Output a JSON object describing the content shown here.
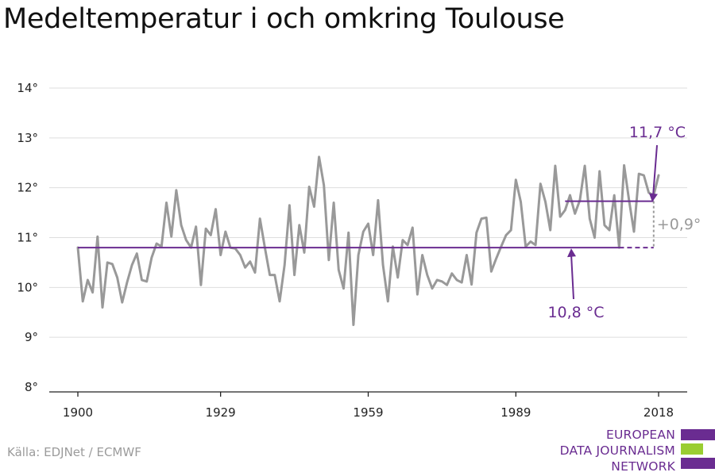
{
  "title": "Medeltemperatur i och omkring Toulouse",
  "source": "Källa: EDJNet / ECMWF",
  "logo": {
    "lines": [
      "EUROPEAN",
      "DATA JOURNALISM",
      "NETWORK"
    ],
    "colors": {
      "purple": "#6a2c91",
      "green": "#9acd32"
    }
  },
  "colors": {
    "series": "#999999",
    "accent": "#6a2c91",
    "diff": "#9a9a9a",
    "grid": "#dddddd"
  },
  "chart_data": {
    "type": "line",
    "title": "Medeltemperatur i och omkring Toulouse",
    "xlabel": "",
    "ylabel": "",
    "xlim": [
      1900,
      2018
    ],
    "ylim": [
      8,
      14
    ],
    "grid": true,
    "legend": "none",
    "x_ticks": [
      1900,
      1929,
      1959,
      1989,
      2018
    ],
    "y_ticks": [
      {
        "value": 8,
        "label": "8°"
      },
      {
        "value": 9,
        "label": "9°"
      },
      {
        "value": 10,
        "label": "10°"
      },
      {
        "value": 11,
        "label": "11°"
      },
      {
        "value": 12,
        "label": "12°"
      },
      {
        "value": 13,
        "label": "13°"
      },
      {
        "value": 14,
        "label": "14°"
      }
    ],
    "series": [
      {
        "x": [
          1900,
          1901,
          1902,
          1903,
          1904,
          1905,
          1906,
          1907,
          1908,
          1909,
          1910,
          1911,
          1912,
          1913,
          1914,
          1915,
          1916,
          1917,
          1918,
          1919,
          1920,
          1921,
          1922,
          1923,
          1924,
          1925,
          1926,
          1927,
          1928,
          1929,
          1930,
          1931,
          1932,
          1933,
          1934,
          1935,
          1936,
          1937,
          1938,
          1939,
          1940,
          1941,
          1942,
          1943,
          1944,
          1945,
          1946,
          1947,
          1948,
          1949,
          1950,
          1951,
          1952,
          1953,
          1954,
          1955,
          1956,
          1957,
          1958,
          1959,
          1960,
          1961,
          1962,
          1963,
          1964,
          1965,
          1966,
          1967,
          1968,
          1969,
          1970,
          1971,
          1972,
          1973,
          1974,
          1975,
          1976,
          1977,
          1978,
          1979,
          1980,
          1981,
          1982,
          1983,
          1984,
          1985,
          1986,
          1987,
          1988,
          1989,
          1990,
          1991,
          1992,
          1993,
          1994,
          1995,
          1996,
          1997,
          1998,
          1999,
          2000,
          2001,
          2002,
          2003,
          2004,
          2005,
          2006,
          2007,
          2008,
          2009,
          2010,
          2011,
          2012,
          2013,
          2014,
          2015,
          2016,
          2017,
          2018
        ],
        "values": [
          10.8,
          9.72,
          10.15,
          9.9,
          11.02,
          9.6,
          10.5,
          10.47,
          10.2,
          9.7,
          10.1,
          10.45,
          10.68,
          10.15,
          10.12,
          10.6,
          10.88,
          10.82,
          11.7,
          11.02,
          11.95,
          11.25,
          10.95,
          10.8,
          11.22,
          10.05,
          11.18,
          11.05,
          11.57,
          10.65,
          11.12,
          10.8,
          10.78,
          10.65,
          10.4,
          10.52,
          10.3,
          11.38,
          10.8,
          10.25,
          10.25,
          9.72,
          10.45,
          11.65,
          10.25,
          11.25,
          10.7,
          12.02,
          11.62,
          12.62,
          12.05,
          10.55,
          11.7,
          10.35,
          9.98,
          11.1,
          9.25,
          10.65,
          11.12,
          11.28,
          10.65,
          11.75,
          10.45,
          9.72,
          10.82,
          10.2,
          10.95,
          10.85,
          11.2,
          9.86,
          10.65,
          10.25,
          9.98,
          10.15,
          10.12,
          10.05,
          10.28,
          10.15,
          10.1,
          10.65,
          10.06,
          11.1,
          11.38,
          11.4,
          10.32,
          10.58,
          10.82,
          11.05,
          11.15,
          12.16,
          11.72,
          10.82,
          10.92,
          10.85,
          12.08,
          11.72,
          11.15,
          12.44,
          11.42,
          11.55,
          11.85,
          11.48,
          11.75,
          12.44,
          11.38,
          11.0,
          12.33,
          11.25,
          11.15,
          11.85,
          10.8,
          12.45,
          11.75,
          11.12,
          12.28,
          12.25,
          11.9,
          11.85,
          12.25
        ]
      }
    ],
    "reference_lines": [
      {
        "label": "10,8 °C",
        "value": 10.8,
        "x_start": 1900,
        "x_end": 2010,
        "dashed_to": 2017
      },
      {
        "label": "11,7 °C",
        "value": 11.73,
        "x_start": 1999,
        "x_end": 2017
      }
    ],
    "difference_label": "+0,9°"
  }
}
